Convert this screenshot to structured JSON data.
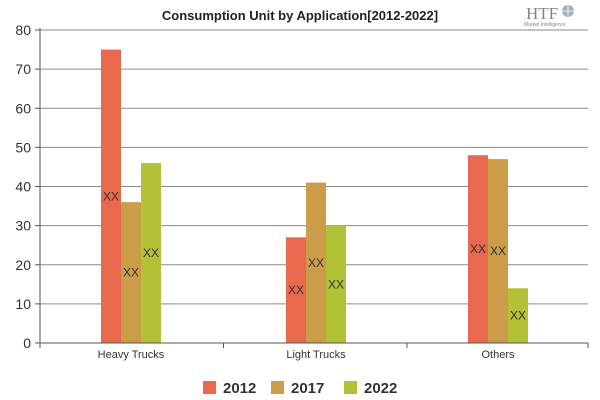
{
  "chart_data": {
    "type": "bar",
    "title": "Consumption Unit by  Application[2012-2022]",
    "xlabel": "",
    "ylabel": "",
    "ylim": [
      0,
      80
    ],
    "yticks": [
      0,
      10,
      20,
      30,
      40,
      50,
      60,
      70,
      80
    ],
    "grid": true,
    "legend_position": "bottom",
    "categories": [
      "Heavy Trucks",
      "Light Trucks",
      "Others"
    ],
    "series": [
      {
        "name": "2012",
        "color": "#e8694e",
        "values": [
          75,
          27,
          48
        ],
        "labels": [
          "XX",
          "XX",
          "XX"
        ]
      },
      {
        "name": "2017",
        "color": "#cc9d48",
        "values": [
          36,
          41,
          47
        ],
        "labels": [
          "XX",
          "XX",
          "XX"
        ]
      },
      {
        "name": "2022",
        "color": "#b2c135",
        "values": [
          46,
          30,
          14
        ],
        "labels": [
          "XX",
          "XX",
          "XX"
        ]
      }
    ]
  },
  "logo": {
    "text": "HTF",
    "subtext": "Market Intelligence"
  }
}
